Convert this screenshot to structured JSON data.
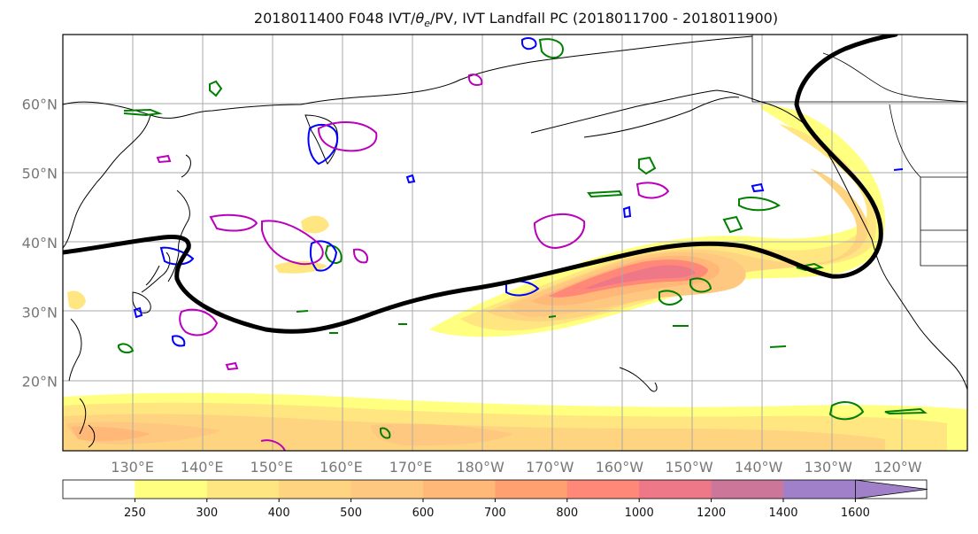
{
  "title": "2018011400 F048 IVT/θe/PV, IVT Landfall PC (2018011700 - 2018011900)",
  "title_parts": {
    "prefix": "2018011400 F048 IVT/",
    "theta": "θ",
    "sub": "e",
    "suffix": "/PV, IVT Landfall PC (2018011700 - 2018011900)"
  },
  "map": {
    "projection": "PlateCarree",
    "lon_range": [
      120,
      -110
    ],
    "lat_range": [
      10,
      70
    ],
    "grid": true,
    "lat_labels": [
      {
        "lat": 60,
        "text": "60°N"
      },
      {
        "lat": 50,
        "text": "50°N"
      },
      {
        "lat": 40,
        "text": "40°N"
      },
      {
        "lat": 30,
        "text": "30°N"
      },
      {
        "lat": 20,
        "text": "20°N"
      }
    ],
    "lon_labels": [
      {
        "lon": 130,
        "text": "130°E"
      },
      {
        "lon": 140,
        "text": "140°E"
      },
      {
        "lon": 150,
        "text": "150°E"
      },
      {
        "lon": 160,
        "text": "160°E"
      },
      {
        "lon": 170,
        "text": "170°E"
      },
      {
        "lon": 180,
        "text": "180°W"
      },
      {
        "lon": 190,
        "text": "170°W"
      },
      {
        "lon": 200,
        "text": "160°W"
      },
      {
        "lon": 210,
        "text": "150°W"
      },
      {
        "lon": 220,
        "text": "140°W"
      },
      {
        "lon": 230,
        "text": "130°W"
      },
      {
        "lon": 240,
        "text": "120°W"
      }
    ]
  },
  "colorbar": {
    "ticks": [
      "250",
      "300",
      "400",
      "500",
      "600",
      "700",
      "800",
      "1000",
      "1200",
      "1400",
      "1600"
    ],
    "colors": [
      "#ffffff",
      "#ffff80",
      "#ffe680",
      "#ffd480",
      "#ffc880",
      "#ffb878",
      "#ffa070",
      "#ff8878",
      "#ee7788",
      "#cc7799",
      "#a080c8",
      "#a080c8"
    ],
    "extend": "max"
  },
  "colors": {
    "landfall_pc": "#000000",
    "theta_e": "#008000",
    "pv_blue": "#0000ff",
    "pv_magenta": "#bb00bb",
    "coast": "#000000",
    "grid": "#aaaaaa"
  }
}
